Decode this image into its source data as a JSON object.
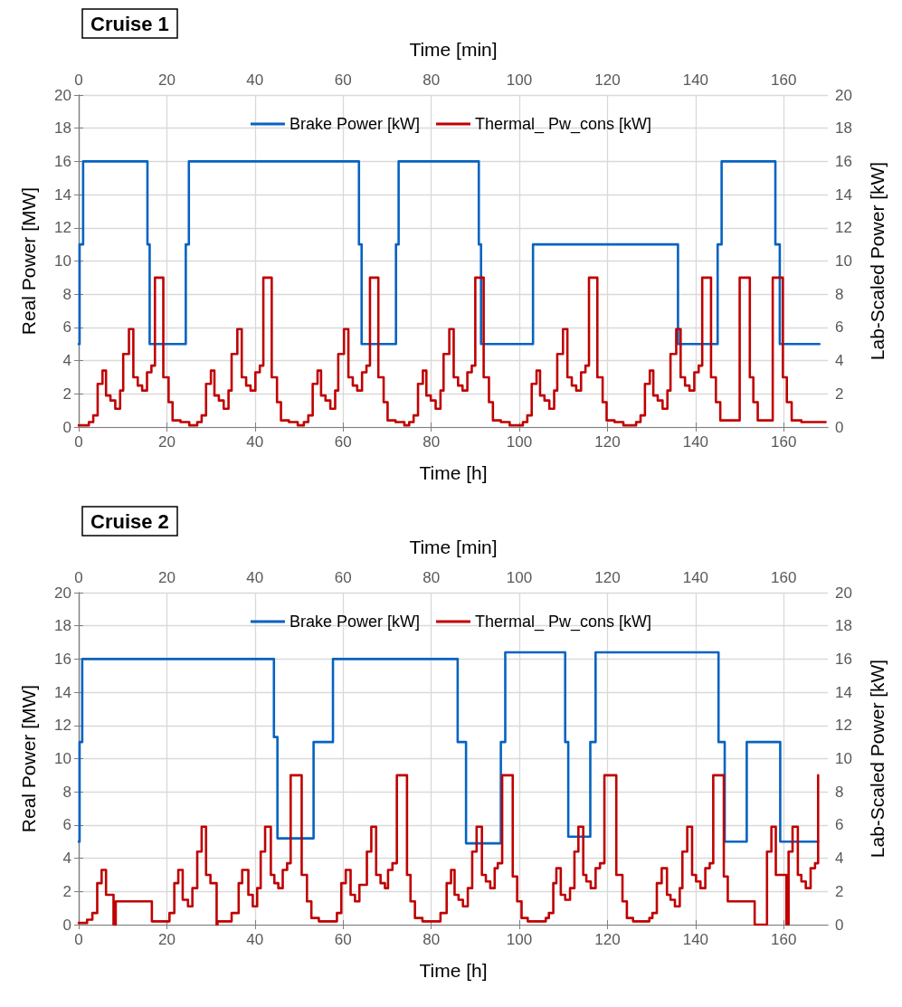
{
  "chart_data": [
    {
      "type": "step",
      "title": "Cruise 1",
      "xlabel": "Time [h]",
      "x2label": "Time [min]",
      "ylabel": "Real Power [MW]",
      "y2label": "Lab-Scaled Power [kW]",
      "xlim": [
        0,
        170
      ],
      "xticks": [
        0,
        20,
        40,
        60,
        80,
        100,
        120,
        140,
        160
      ],
      "x2lim": [
        0,
        170
      ],
      "x2ticks": [
        0,
        20,
        40,
        60,
        80,
        100,
        120,
        140,
        160
      ],
      "ylim": [
        0,
        20
      ],
      "yticks": [
        0,
        2,
        4,
        6,
        8,
        10,
        12,
        14,
        16,
        18,
        20
      ],
      "y2lim": [
        0,
        20
      ],
      "y2ticks": [
        0,
        2,
        4,
        6,
        8,
        10,
        12,
        14,
        16,
        18,
        20
      ],
      "grid": true,
      "legend": "top",
      "marker": "none",
      "line_style": "solid",
      "series": [
        {
          "name": "Brake Power [kW]",
          "color": "#0563c1",
          "x": [
            0,
            0.2,
            1.0,
            15.6,
            16.1,
            24.3,
            25.0,
            63.6,
            64.2,
            72.0,
            72.6,
            90.8,
            91.3,
            103.1,
            136.0,
            145.0,
            145.9,
            158.1,
            159.1,
            168.1
          ],
          "values": [
            5,
            11,
            16,
            11,
            5,
            11,
            16,
            11,
            5,
            11,
            16,
            11,
            5,
            11,
            5,
            11,
            16,
            11,
            5,
            5
          ]
        },
        {
          "name": "Thermal_ Pw_cons [kW]",
          "color": "#c00000",
          "x": [
            0,
            2.3,
            3.3,
            4.3,
            5.4,
            6.2,
            7.2,
            8.3,
            9.4,
            10.1,
            11.4,
            12.4,
            13.4,
            14.4,
            15.5,
            16.5,
            17.3,
            19.2,
            20.4,
            21.3,
            23.1,
            25.1,
            26.9,
            27.9,
            28.9,
            30.0,
            30.8,
            31.8,
            32.9,
            34.0,
            34.7,
            36.0,
            37.0,
            38.0,
            39.0,
            40.1,
            41.1,
            41.9,
            43.8,
            45.0,
            45.9,
            47.7,
            49.7,
            51.1,
            52.1,
            53.1,
            54.2,
            55.0,
            56.0,
            57.1,
            58.2,
            58.9,
            60.2,
            61.2,
            62.2,
            63.2,
            64.3,
            65.3,
            66.1,
            68.0,
            69.2,
            70.1,
            71.9,
            73.9,
            75.0,
            76.0,
            77.0,
            78.1,
            78.9,
            79.9,
            81.0,
            82.1,
            82.8,
            84.1,
            85.1,
            86.1,
            87.1,
            88.2,
            89.2,
            90.0,
            91.9,
            93.1,
            94.0,
            95.8,
            97.8,
            100.8,
            101.8,
            102.8,
            103.9,
            104.7,
            105.7,
            106.8,
            107.9,
            108.6,
            109.9,
            110.9,
            111.9,
            112.9,
            114.0,
            115.0,
            115.8,
            117.7,
            118.9,
            119.8,
            121.6,
            123.6,
            126.5,
            127.5,
            128.5,
            129.6,
            130.4,
            131.4,
            132.5,
            133.6,
            134.3,
            135.6,
            136.6,
            137.6,
            138.6,
            139.7,
            140.7,
            141.5,
            143.5,
            144.6,
            145.6,
            150.0,
            152.3,
            153.1,
            154.1,
            157.5,
            159.8,
            160.7,
            161.8,
            164.0,
            169.5
          ],
          "values": [
            0.1,
            0.3,
            0.7,
            2.6,
            3.4,
            1.9,
            1.6,
            1.1,
            2.2,
            4.4,
            5.9,
            3.0,
            2.5,
            2.2,
            3.3,
            3.7,
            9.0,
            3.0,
            1.5,
            0.4,
            0.3,
            0.1,
            0.3,
            0.7,
            2.6,
            3.4,
            1.9,
            1.6,
            1.1,
            2.2,
            4.4,
            5.9,
            3.0,
            2.5,
            2.2,
            3.3,
            3.7,
            9.0,
            3.0,
            1.5,
            0.4,
            0.3,
            0.1,
            0.3,
            0.7,
            2.6,
            3.4,
            1.9,
            1.6,
            1.1,
            2.2,
            4.4,
            5.9,
            3.0,
            2.5,
            2.2,
            3.3,
            3.7,
            9.0,
            3.0,
            1.5,
            0.4,
            0.3,
            0.1,
            0.3,
            0.7,
            2.6,
            3.4,
            1.9,
            1.6,
            1.1,
            2.2,
            4.4,
            5.9,
            3.0,
            2.5,
            2.2,
            3.3,
            3.7,
            9.0,
            3.0,
            1.5,
            0.4,
            0.3,
            0.1,
            0.3,
            0.7,
            2.6,
            3.4,
            1.9,
            1.6,
            1.1,
            2.2,
            4.4,
            5.9,
            3.0,
            2.5,
            2.2,
            3.3,
            3.7,
            9.0,
            3.0,
            1.5,
            0.4,
            0.3,
            0.1,
            0.3,
            0.7,
            2.6,
            3.4,
            1.9,
            1.6,
            1.1,
            2.2,
            4.4,
            5.9,
            3.0,
            2.5,
            2.2,
            3.3,
            3.7,
            9.0,
            3.0,
            1.5,
            0.4,
            9.0,
            3.0,
            1.5,
            0.4,
            9.0,
            3.0,
            1.5,
            0.4,
            0.3,
            0.3
          ]
        }
      ]
    },
    {
      "type": "step",
      "title": "Cruise 2",
      "xlabel": "Time [h]",
      "x2label": "Time [min]",
      "ylabel": "Real Power [MW]",
      "y2label": "Lab-Scaled Power [kW]",
      "xlim": [
        0,
        170
      ],
      "xticks": [
        0,
        20,
        40,
        60,
        80,
        100,
        120,
        140,
        160
      ],
      "x2lim": [
        0,
        170
      ],
      "x2ticks": [
        0,
        20,
        40,
        60,
        80,
        100,
        120,
        140,
        160
      ],
      "ylim": [
        0,
        20
      ],
      "yticks": [
        0,
        2,
        4,
        6,
        8,
        10,
        12,
        14,
        16,
        18,
        20
      ],
      "y2lim": [
        0,
        20
      ],
      "y2ticks": [
        0,
        2,
        4,
        6,
        8,
        10,
        12,
        14,
        16,
        18,
        20
      ],
      "grid": true,
      "legend": "top",
      "marker": "none",
      "line_style": "solid",
      "series": [
        {
          "name": "Brake Power [kW]",
          "color": "#0563c1",
          "x": [
            0,
            0.2,
            0.8,
            44.3,
            45.1,
            53.3,
            57.7,
            86.0,
            87.9,
            95.8,
            96.8,
            110.4,
            111.1,
            116.1,
            117.3,
            145.2,
            146.6,
            151.6,
            159.2,
            167.8
          ],
          "values": [
            5,
            11,
            16,
            11.3,
            5.2,
            11,
            16,
            11,
            4.9,
            11,
            16.4,
            11,
            5.3,
            11,
            16.4,
            11,
            5,
            11,
            5,
            5
          ]
        },
        {
          "name": "Thermal_ Pw_cons [kW]",
          "color": "#c00000",
          "x": [
            0,
            1.9,
            3.1,
            4.2,
            5.2,
            6.2,
            7.9,
            8.4,
            16.6,
            20.6,
            21.7,
            22.6,
            23.6,
            24.8,
            25.8,
            26.9,
            27.9,
            28.9,
            29.9,
            31.3,
            31.5,
            34.7,
            36.3,
            37.1,
            38.5,
            39.5,
            40.5,
            41.3,
            42.3,
            43.6,
            44.4,
            45.3,
            46.3,
            47.3,
            48.1,
            50.6,
            51.8,
            52.8,
            54.5,
            58.6,
            59.6,
            60.6,
            61.7,
            62.7,
            63.7,
            65.4,
            66.4,
            67.5,
            68.5,
            69.5,
            70.2,
            71.2,
            72.2,
            74.5,
            75.3,
            76.3,
            78.0,
            82.1,
            83.5,
            84.5,
            85.3,
            86.2,
            87.2,
            88.3,
            89.3,
            90.3,
            91.5,
            92.4,
            93.4,
            94.4,
            95.1,
            96.1,
            98.5,
            99.5,
            100.5,
            101.9,
            106.0,
            106.7,
            107.7,
            108.4,
            109.4,
            110.4,
            111.5,
            112.5,
            113.4,
            114.5,
            115.2,
            116.2,
            117.3,
            118.3,
            119.3,
            122.0,
            123.4,
            124.4,
            125.8,
            129.5,
            130.2,
            131.2,
            132.3,
            133.5,
            134.3,
            135.3,
            136.4,
            137.0,
            138.1,
            139.2,
            140.1,
            141.1,
            142.2,
            143.2,
            144.0,
            146.4,
            147.3,
            153.4,
            156.2,
            157.2,
            158.2,
            160.6,
            161.1,
            162.0,
            163.2,
            164.0,
            165.0,
            166.1,
            167.1,
            167.8
          ],
          "values": [
            0.1,
            0.3,
            0.7,
            2.5,
            3.3,
            1.8,
            0,
            1.4,
            0.2,
            0.7,
            2.5,
            3.3,
            1.5,
            1.1,
            2.2,
            4.4,
            5.9,
            3.0,
            2.5,
            0,
            0.2,
            0.7,
            2.5,
            3.3,
            1.8,
            1.1,
            2.2,
            4.4,
            5.9,
            3.0,
            2.5,
            2.2,
            3.3,
            3.7,
            9.0,
            3.0,
            1.4,
            0.4,
            0.2,
            0.7,
            2.5,
            3.3,
            1.8,
            1.4,
            2.4,
            4.4,
            5.9,
            3.0,
            2.5,
            2.2,
            3.3,
            3.7,
            9.0,
            3.0,
            1.4,
            0.4,
            0.2,
            0.7,
            2.5,
            3.3,
            1.8,
            1.5,
            1.1,
            2.2,
            4.4,
            5.9,
            3.0,
            2.6,
            2.2,
            3.4,
            3.7,
            9.0,
            2.9,
            1.4,
            0.4,
            0.2,
            0.4,
            0.7,
            2.5,
            3.4,
            1.8,
            1.5,
            2.2,
            4.4,
            5.9,
            3.0,
            2.6,
            2.2,
            3.4,
            3.7,
            9.0,
            3.0,
            1.4,
            0.4,
            0.2,
            0.4,
            0.7,
            2.5,
            3.4,
            1.8,
            1.5,
            1.1,
            2.2,
            4.4,
            5.9,
            3.0,
            2.6,
            2.2,
            3.4,
            3.7,
            9.0,
            2.9,
            1.4,
            0,
            4.4,
            5.9,
            3.0,
            0,
            4.4,
            5.9,
            3.0,
            2.6,
            2.2,
            3.4,
            3.7,
            9.0
          ]
        }
      ]
    }
  ]
}
